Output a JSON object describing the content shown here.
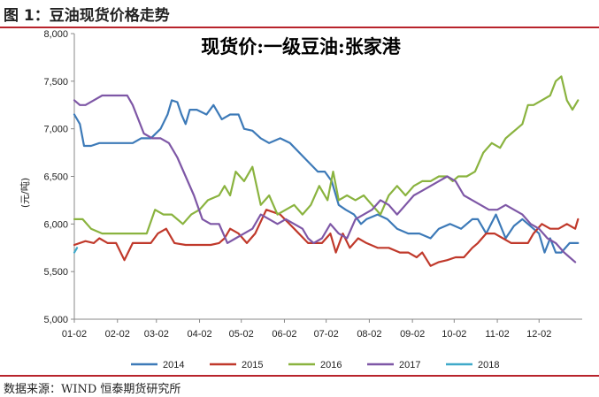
{
  "figure_title": "图 1：豆油现货价格走势",
  "source": "数据来源：WIND 恒泰期货研究所",
  "chart_data": {
    "type": "line",
    "title": "现货价:一级豆油:张家港",
    "ylabel": "(元/吨)",
    "xlabel": "",
    "ylim": [
      5000,
      8000
    ],
    "yticks": [
      5000,
      5500,
      6000,
      6500,
      7000,
      7500,
      8000
    ],
    "ytick_labels": [
      "5,000",
      "5,500",
      "6,000",
      "6,500",
      "7,000",
      "7,500",
      "8,000"
    ],
    "xlim": [
      0,
      365
    ],
    "xticks": [
      0,
      31,
      59,
      90,
      120,
      151,
      181,
      212,
      243,
      273,
      304,
      334
    ],
    "xtick_labels": [
      "01-02",
      "02-02",
      "03-02",
      "04-02",
      "05-02",
      "06-02",
      "07-02",
      "08-02",
      "09-02",
      "10-02",
      "11-02",
      "12-02"
    ],
    "grid": false,
    "legend": "bottom",
    "series": [
      {
        "name": "2014",
        "color": "#3d7ab8",
        "x": [
          0,
          4,
          7,
          12,
          18,
          30,
          42,
          48,
          55,
          62,
          67,
          70,
          74,
          77,
          80,
          83,
          88,
          95,
          100,
          106,
          112,
          118,
          122,
          128,
          134,
          140,
          148,
          155,
          165,
          175,
          180,
          185,
          190,
          195,
          201,
          206,
          210,
          218,
          225,
          232,
          240,
          248,
          256,
          262,
          270,
          278,
          286,
          290,
          296,
          303,
          310,
          316,
          322,
          326,
          330,
          334,
          338,
          342,
          346,
          350,
          356,
          362
        ],
        "values": [
          7150,
          7050,
          6820,
          6820,
          6850,
          6850,
          6850,
          6900,
          6900,
          7000,
          7150,
          7300,
          7280,
          7150,
          7050,
          7200,
          7200,
          7150,
          7250,
          7100,
          7150,
          7150,
          7000,
          6980,
          6900,
          6850,
          6900,
          6850,
          6700,
          6550,
          6550,
          6450,
          6200,
          6150,
          6100,
          6000,
          6050,
          6100,
          6050,
          5950,
          5900,
          5900,
          5850,
          5950,
          6000,
          5950,
          6050,
          6050,
          5900,
          6100,
          5850,
          5980,
          6050,
          6000,
          5950,
          5900,
          5700,
          5850,
          5700,
          5700,
          5800,
          5800
        ]
      },
      {
        "name": "2015",
        "color": "#c0392b",
        "x": [
          0,
          8,
          14,
          18,
          24,
          30,
          36,
          42,
          48,
          52,
          55,
          60,
          66,
          72,
          80,
          90,
          98,
          104,
          108,
          112,
          118,
          124,
          130,
          138,
          148,
          158,
          168,
          178,
          184,
          188,
          193,
          198,
          204,
          210,
          218,
          226,
          234,
          240,
          246,
          250,
          256,
          262,
          268,
          274,
          280,
          286,
          290,
          296,
          302,
          308,
          314,
          320,
          326,
          330,
          336,
          342,
          348,
          354,
          360,
          362
        ],
        "values": [
          5780,
          5820,
          5800,
          5850,
          5800,
          5800,
          5620,
          5800,
          5800,
          5800,
          5800,
          5900,
          5950,
          5800,
          5780,
          5780,
          5780,
          5800,
          5850,
          5950,
          5900,
          5800,
          5900,
          6150,
          6100,
          5950,
          5800,
          5800,
          5900,
          5700,
          5900,
          5750,
          5850,
          5800,
          5750,
          5750,
          5700,
          5700,
          5650,
          5700,
          5560,
          5600,
          5620,
          5650,
          5650,
          5750,
          5800,
          5900,
          5900,
          5850,
          5800,
          5800,
          5800,
          5900,
          6000,
          5950,
          5950,
          6000,
          5950,
          6050
        ]
      },
      {
        "name": "2016",
        "color": "#8ab33f",
        "x": [
          0,
          6,
          12,
          20,
          30,
          40,
          52,
          58,
          64,
          70,
          78,
          84,
          90,
          96,
          104,
          108,
          112,
          116,
          122,
          128,
          134,
          140,
          146,
          152,
          158,
          164,
          170,
          176,
          182,
          186,
          190,
          196,
          202,
          208,
          214,
          220,
          226,
          232,
          238,
          244,
          250,
          256,
          262,
          268,
          272,
          276,
          282,
          288,
          294,
          300,
          306,
          310,
          314,
          318,
          322,
          326,
          330,
          336,
          342,
          346,
          350,
          354,
          358,
          362
        ],
        "values": [
          6050,
          6050,
          5950,
          5900,
          5900,
          5900,
          5900,
          6150,
          6100,
          6100,
          6000,
          6100,
          6150,
          6250,
          6300,
          6400,
          6300,
          6550,
          6450,
          6600,
          6200,
          6300,
          6100,
          6150,
          6200,
          6100,
          6200,
          6400,
          6250,
          6550,
          6250,
          6300,
          6250,
          6300,
          6200,
          6100,
          6300,
          6400,
          6300,
          6400,
          6450,
          6450,
          6500,
          6500,
          6450,
          6500,
          6500,
          6550,
          6750,
          6850,
          6800,
          6900,
          6950,
          7000,
          7050,
          7250,
          7250,
          7300,
          7350,
          7500,
          7550,
          7300,
          7200,
          7300
        ]
      },
      {
        "name": "2017",
        "color": "#7e57a6",
        "x": [
          0,
          4,
          8,
          14,
          20,
          26,
          32,
          38,
          42,
          46,
          50,
          56,
          62,
          68,
          74,
          80,
          86,
          92,
          98,
          104,
          110,
          116,
          122,
          128,
          134,
          140,
          146,
          152,
          158,
          164,
          168,
          172,
          178,
          184,
          190,
          196,
          202,
          208,
          214,
          220,
          226,
          232,
          238,
          244,
          250,
          256,
          262,
          268,
          274,
          280,
          286,
          292,
          298,
          304,
          310,
          316,
          322,
          328,
          334,
          340,
          346,
          352,
          356,
          360
        ],
        "values": [
          7300,
          7250,
          7250,
          7300,
          7350,
          7350,
          7350,
          7350,
          7250,
          7100,
          6950,
          6900,
          6900,
          6850,
          6700,
          6500,
          6300,
          6050,
          6000,
          6000,
          5800,
          5850,
          5900,
          5950,
          6100,
          6050,
          6000,
          6050,
          6000,
          5950,
          5850,
          5800,
          5850,
          6000,
          5900,
          5850,
          6050,
          6100,
          6150,
          6250,
          6200,
          6100,
          6200,
          6300,
          6350,
          6400,
          6450,
          6500,
          6450,
          6300,
          6250,
          6200,
          6150,
          6150,
          6200,
          6150,
          6100,
          6000,
          5950,
          5850,
          5800,
          5700,
          5650,
          5600
        ]
      },
      {
        "name": "2018",
        "color": "#3fa9c9",
        "x": [
          0,
          2
        ],
        "values": [
          5700,
          5750
        ]
      }
    ]
  }
}
